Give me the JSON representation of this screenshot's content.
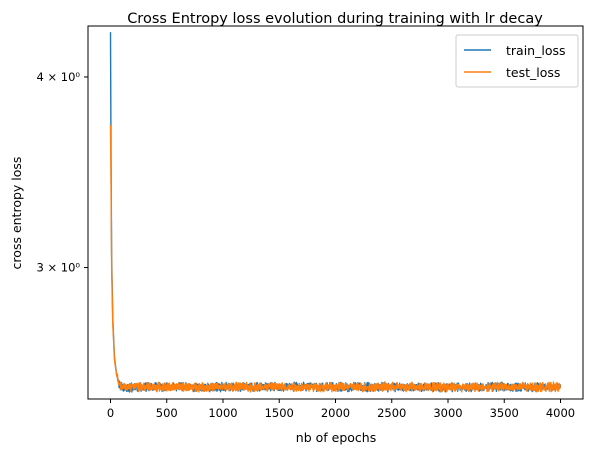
{
  "chart_data": {
    "type": "line",
    "title": "Cross Entropy loss evolution during training with lr decay",
    "xlabel": "nb of epochs",
    "ylabel": "cross entropy loss",
    "xlim": [
      -200,
      4200
    ],
    "ylim": [
      2.46,
      4.32
    ],
    "yscale": "log",
    "grid": false,
    "legend_position": "top-right",
    "xticks": [
      {
        "value": 0,
        "label": "0"
      },
      {
        "value": 500,
        "label": "500"
      },
      {
        "value": 1000,
        "label": "1000"
      },
      {
        "value": 1500,
        "label": "1500"
      },
      {
        "value": 2000,
        "label": "2000"
      },
      {
        "value": 2500,
        "label": "2500"
      },
      {
        "value": 3000,
        "label": "3000"
      },
      {
        "value": 3500,
        "label": "3500"
      },
      {
        "value": 4000,
        "label": "4000"
      }
    ],
    "yticks": [
      {
        "value": 4,
        "label": "4 × 10⁰"
      },
      {
        "value": 3,
        "label": "3 × 10⁰"
      }
    ],
    "series": [
      {
        "name": "train_loss",
        "color": "#1f77b4",
        "points": [
          [
            0,
            4.28
          ],
          [
            5,
            3.5
          ],
          [
            10,
            3.05
          ],
          [
            20,
            2.78
          ],
          [
            35,
            2.62
          ],
          [
            55,
            2.55
          ],
          [
            80,
            2.51
          ],
          [
            120,
            2.505
          ],
          [
            200,
            2.505
          ],
          [
            500,
            2.505
          ],
          [
            1000,
            2.505
          ],
          [
            1500,
            2.505
          ],
          [
            2000,
            2.505
          ],
          [
            2500,
            2.505
          ],
          [
            3000,
            2.505
          ],
          [
            3500,
            2.505
          ],
          [
            4000,
            2.505
          ]
        ],
        "noise_amplitude": 0.012
      },
      {
        "name": "test_loss",
        "color": "#ff7f0e",
        "points": [
          [
            0,
            3.72
          ],
          [
            5,
            3.4
          ],
          [
            10,
            3.0
          ],
          [
            20,
            2.76
          ],
          [
            35,
            2.61
          ],
          [
            55,
            2.55
          ],
          [
            80,
            2.51
          ],
          [
            120,
            2.505
          ],
          [
            200,
            2.505
          ],
          [
            500,
            2.505
          ],
          [
            1000,
            2.505
          ],
          [
            1500,
            2.505
          ],
          [
            2000,
            2.505
          ],
          [
            2500,
            2.505
          ],
          [
            3000,
            2.505
          ],
          [
            3500,
            2.505
          ],
          [
            4000,
            2.505
          ]
        ],
        "noise_amplitude": 0.012
      }
    ]
  }
}
